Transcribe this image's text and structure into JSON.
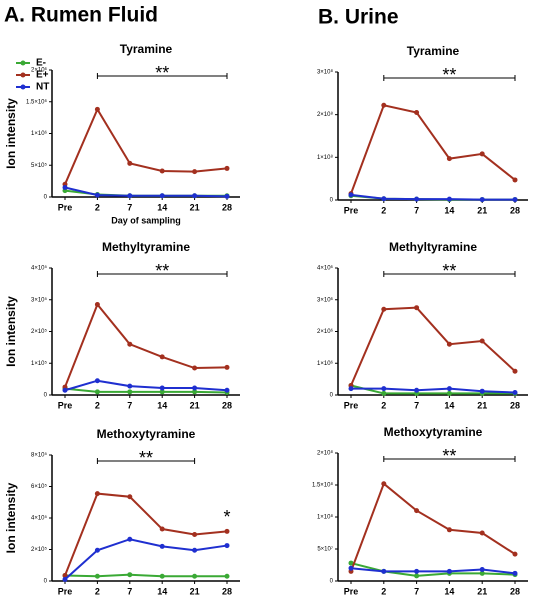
{
  "headers": [
    "A. Rumen Fluid",
    "B. Urine"
  ],
  "chart_data": [
    {
      "type": "line",
      "title": "Tyramine",
      "ylabel": "Ion intensity",
      "xlabel": "Day of sampling",
      "legend": "upper left",
      "categories": [
        "Pre",
        "2",
        "7",
        "14",
        "21",
        "28"
      ],
      "ylim": [
        0,
        2000000
      ],
      "yticks": [
        0,
        {
          "value": 500000,
          "label": "5×10⁵"
        },
        {
          "value": 1000000,
          "label": "1×10⁶"
        },
        {
          "value": 1500000,
          "label": "1.5×10⁶"
        },
        {
          "value": 2000000,
          "label": "2×10⁶"
        }
      ],
      "series": [
        {
          "name": "E-",
          "color": "#3aa935",
          "values": [
            100000,
            40000,
            20000,
            20000,
            20000,
            20000
          ]
        },
        {
          "name": "E+",
          "color": "#a3301f",
          "values": [
            200000,
            1380000,
            530000,
            410000,
            400000,
            450000
          ]
        },
        {
          "name": "NT",
          "color": "#1f2fd0",
          "values": [
            150000,
            30000,
            20000,
            20000,
            20000,
            10000
          ]
        }
      ],
      "annotations": [
        {
          "text": "**",
          "start": "2",
          "end": "28"
        }
      ]
    },
    {
      "type": "line",
      "title": "Tyramine",
      "categories": [
        "Pre",
        "2",
        "7",
        "14",
        "21",
        "28"
      ],
      "ylim": [
        0,
        300000000
      ],
      "yticks": [
        0,
        {
          "value": 100000000,
          "label": "1×10⁸"
        },
        {
          "value": 200000000,
          "label": "2×10⁸"
        },
        {
          "value": 300000000,
          "label": "3×10⁸"
        }
      ],
      "series": [
        {
          "name": "E-",
          "color": "#3aa935",
          "values": [
            10000000,
            3000000,
            2000000,
            1000000,
            1000000,
            1000000
          ]
        },
        {
          "name": "E+",
          "color": "#a3301f",
          "values": [
            15000000,
            222000000,
            205000000,
            97000000,
            108000000,
            47000000
          ]
        },
        {
          "name": "NT",
          "color": "#1f2fd0",
          "values": [
            12000000,
            3000000,
            2000000,
            2000000,
            1000000,
            1000000
          ]
        }
      ],
      "annotations": [
        {
          "text": "**",
          "start": "2",
          "end": "28"
        }
      ]
    },
    {
      "type": "line",
      "title": "Methyltyramine",
      "ylabel": "Ion intensity",
      "categories": [
        "Pre",
        "2",
        "7",
        "14",
        "21",
        "28"
      ],
      "ylim": [
        0,
        400000
      ],
      "yticks": [
        0,
        {
          "value": 100000,
          "label": "1×10⁵"
        },
        {
          "value": 200000,
          "label": "2×10⁵"
        },
        {
          "value": 300000,
          "label": "3×10⁵"
        },
        {
          "value": 400000,
          "label": "4×10⁵"
        }
      ],
      "series": [
        {
          "name": "E-",
          "color": "#3aa935",
          "values": [
            20000,
            10000,
            10000,
            10000,
            10000,
            8000
          ]
        },
        {
          "name": "E+",
          "color": "#a3301f",
          "values": [
            25000,
            285000,
            160000,
            120000,
            85000,
            87000
          ]
        },
        {
          "name": "NT",
          "color": "#1f2fd0",
          "values": [
            15000,
            45000,
            28000,
            22000,
            22000,
            15000
          ]
        }
      ],
      "annotations": [
        {
          "text": "**",
          "start": "2",
          "end": "28"
        }
      ]
    },
    {
      "type": "line",
      "title": "Methyltyramine",
      "categories": [
        "Pre",
        "2",
        "7",
        "14",
        "21",
        "28"
      ],
      "ylim": [
        0,
        4000000
      ],
      "yticks": [
        0,
        {
          "value": 1000000,
          "label": "1×10⁶"
        },
        {
          "value": 2000000,
          "label": "2×10⁶"
        },
        {
          "value": 3000000,
          "label": "3×10⁶"
        },
        {
          "value": 4000000,
          "label": "4×10⁶"
        }
      ],
      "series": [
        {
          "name": "E-",
          "color": "#3aa935",
          "values": [
            300000,
            50000,
            50000,
            50000,
            50000,
            50000
          ]
        },
        {
          "name": "E+",
          "color": "#a3301f",
          "values": [
            300000,
            2700000,
            2750000,
            1600000,
            1700000,
            750000
          ]
        },
        {
          "name": "NT",
          "color": "#1f2fd0",
          "values": [
            200000,
            200000,
            150000,
            200000,
            120000,
            80000
          ]
        }
      ],
      "annotations": [
        {
          "text": "**",
          "start": "2",
          "end": "28"
        }
      ]
    },
    {
      "type": "line",
      "title": "Methoxytyramine",
      "ylabel": "Ion intensity",
      "categories": [
        "Pre",
        "2",
        "7",
        "14",
        "21",
        "28"
      ],
      "ylim": [
        0,
        800000
      ],
      "yticks": [
        0,
        {
          "value": 200000,
          "label": "2×10⁵"
        },
        {
          "value": 400000,
          "label": "4×10⁵"
        },
        {
          "value": 600000,
          "label": "6×10⁵"
        },
        {
          "value": 800000,
          "label": "8×10⁵"
        }
      ],
      "series": [
        {
          "name": "E-",
          "color": "#3aa935",
          "values": [
            35000,
            30000,
            40000,
            30000,
            30000,
            30000
          ]
        },
        {
          "name": "E+",
          "color": "#a3301f",
          "values": [
            35000,
            555000,
            535000,
            330000,
            295000,
            315000
          ]
        },
        {
          "name": "NT",
          "color": "#1f2fd0",
          "values": [
            10000,
            195000,
            265000,
            220000,
            195000,
            225000
          ]
        }
      ],
      "annotations": [
        {
          "text": "**",
          "start": "2",
          "end": "21"
        },
        {
          "text": "*",
          "start": "28",
          "end": "28"
        }
      ]
    },
    {
      "type": "line",
      "title": "Methoxytyramine",
      "categories": [
        "Pre",
        "2",
        "7",
        "14",
        "21",
        "28"
      ],
      "ylim": [
        0,
        200000000
      ],
      "yticks": [
        0,
        {
          "value": 50000000,
          "label": "5×10⁷"
        },
        {
          "value": 100000000,
          "label": "1×10⁸"
        },
        {
          "value": 150000000,
          "label": "1.5×10⁸"
        },
        {
          "value": 200000000,
          "label": "2×10⁸"
        }
      ],
      "series": [
        {
          "name": "E-",
          "color": "#3aa935",
          "values": [
            28000000,
            15000000,
            8000000,
            12000000,
            12000000,
            10000000
          ]
        },
        {
          "name": "E+",
          "color": "#a3301f",
          "values": [
            15000000,
            152000000,
            110000000,
            80000000,
            75000000,
            42000000
          ]
        },
        {
          "name": "NT",
          "color": "#1f2fd0",
          "values": [
            20000000,
            15000000,
            15000000,
            15000000,
            18000000,
            12000000
          ]
        }
      ],
      "annotations": [
        {
          "text": "**",
          "start": "2",
          "end": "28"
        }
      ]
    }
  ]
}
